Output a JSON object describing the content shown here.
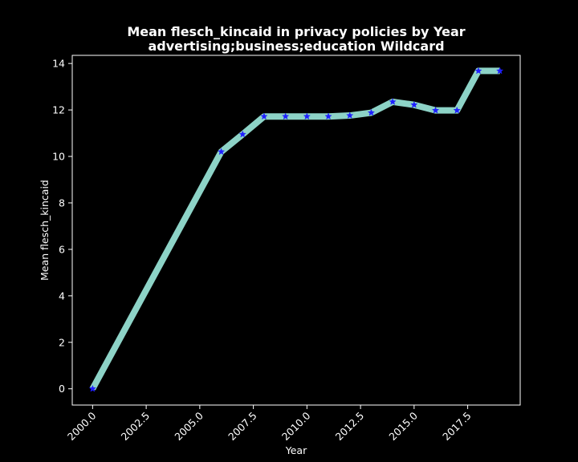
{
  "chart_data": {
    "type": "line",
    "title": "Mean flesch_kincaid in privacy policies by Year",
    "subtitle": "advertising;business;education Wildcard",
    "xlabel": "Year",
    "ylabel": "Mean flesch_kincaid",
    "xlim": [
      1999.05,
      2019.95
    ],
    "ylim": [
      -0.7,
      14.35
    ],
    "x_ticks": [
      "2000.0",
      "2002.5",
      "2005.0",
      "2007.5",
      "2010.0",
      "2012.5",
      "2015.0",
      "2017.5"
    ],
    "y_ticks": [
      "0",
      "2",
      "4",
      "6",
      "8",
      "10",
      "12",
      "14"
    ],
    "grid": false,
    "legend": "none",
    "colors": {
      "background": "#000000",
      "line": "#8dd3c7",
      "marker": "#1f1fff",
      "axes": "#ffffff",
      "text": "#ffffff"
    },
    "series": [
      {
        "x": [
          2000,
          2006,
          2007,
          2008,
          2009,
          2010,
          2011,
          2012,
          2013,
          2014,
          2015,
          2016,
          2017,
          2018,
          2019
        ],
        "values": [
          0.0,
          10.2,
          10.95,
          11.72,
          11.72,
          11.72,
          11.72,
          11.76,
          11.88,
          12.35,
          12.22,
          11.98,
          11.98,
          13.68,
          13.68
        ]
      }
    ]
  }
}
